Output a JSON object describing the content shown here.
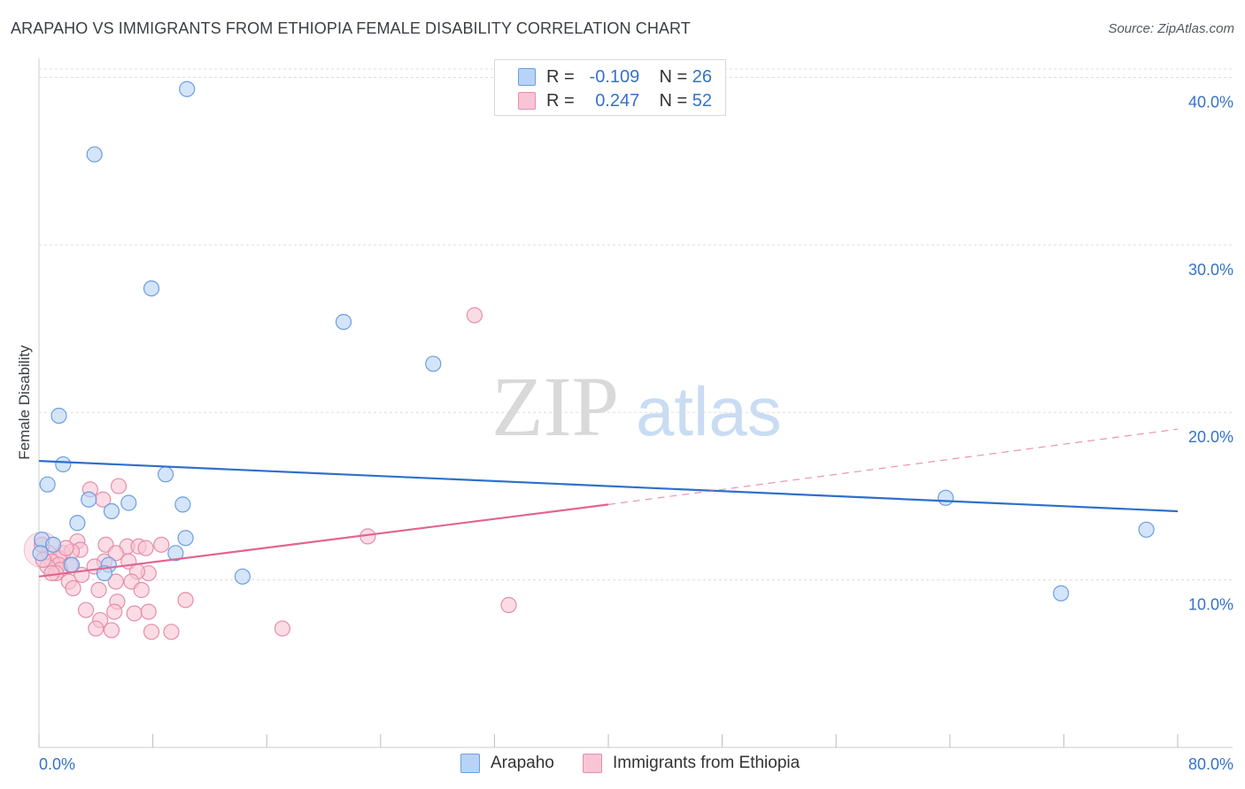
{
  "header": {
    "title": "ARAPAHO VS IMMIGRANTS FROM ETHIOPIA FEMALE DISABILITY CORRELATION CHART",
    "source": "Source: ZipAtlas.com"
  },
  "watermark": {
    "zip": "ZIP",
    "atlas": "atlas"
  },
  "legend": {
    "rows": [
      {
        "r_label": "R =",
        "r_value": "-0.109",
        "n_label": "N =",
        "n_value": "26"
      },
      {
        "r_label": "R =",
        "r_value": "0.247",
        "n_label": "N =",
        "n_value": "52"
      }
    ],
    "bottom": [
      "Arapaho",
      "Immigrants from Ethiopia"
    ]
  },
  "colors": {
    "blue_fill": "#b8d3f5",
    "blue_stroke": "#6c9ee0",
    "blue_line": "#2f6fcc",
    "pink_fill": "#f9c5d4",
    "pink_stroke": "#e58eaa",
    "pink_line": "#e06690",
    "axis_label": "#3572c9",
    "grid": "#dddddd"
  },
  "chart_data": {
    "type": "scatter",
    "title": "ARAPAHO VS IMMIGRANTS FROM ETHIOPIA FEMALE DISABILITY CORRELATION CHART",
    "xlabel": "",
    "ylabel": "Female Disability",
    "xlim": [
      0,
      80
    ],
    "ylim": [
      0,
      40.5
    ],
    "x_tick_labels": [
      "0.0%",
      "80.0%"
    ],
    "y_ticks": [
      10,
      20,
      30,
      40
    ],
    "y_tick_labels": [
      "10.0%",
      "20.0%",
      "30.0%",
      "40.0%"
    ],
    "legend_position": "top-center",
    "series": [
      {
        "name": "Arapaho",
        "r": -0.109,
        "n": 26,
        "points": [
          [
            10.4,
            39.3
          ],
          [
            3.9,
            35.4
          ],
          [
            7.9,
            27.4
          ],
          [
            21.4,
            25.4
          ],
          [
            27.7,
            22.9
          ],
          [
            1.4,
            19.8
          ],
          [
            1.7,
            16.9
          ],
          [
            8.9,
            16.3
          ],
          [
            0.6,
            15.7
          ],
          [
            3.5,
            14.8
          ],
          [
            6.3,
            14.6
          ],
          [
            10.1,
            14.5
          ],
          [
            5.1,
            14.1
          ],
          [
            2.7,
            13.4
          ],
          [
            10.3,
            12.5
          ],
          [
            0.2,
            12.4
          ],
          [
            1.0,
            12.1
          ],
          [
            9.6,
            11.6
          ],
          [
            4.9,
            10.9
          ],
          [
            2.3,
            10.9
          ],
          [
            4.6,
            10.4
          ],
          [
            14.3,
            10.2
          ],
          [
            63.7,
            14.9
          ],
          [
            77.8,
            13.0
          ],
          [
            71.8,
            9.2
          ],
          [
            0.1,
            11.6
          ]
        ],
        "trend": {
          "x0": 0,
          "y0": 17.1,
          "x1": 80,
          "y1": 14.1
        }
      },
      {
        "name": "Immigrants from Ethiopia",
        "r": 0.247,
        "n": 52,
        "points": [
          [
            30.6,
            25.8
          ],
          [
            5.6,
            15.6
          ],
          [
            3.6,
            15.4
          ],
          [
            4.5,
            14.8
          ],
          [
            23.1,
            12.6
          ],
          [
            2.7,
            12.3
          ],
          [
            4.7,
            12.1
          ],
          [
            6.2,
            12.0
          ],
          [
            7.0,
            12.0
          ],
          [
            8.6,
            12.1
          ],
          [
            2.9,
            11.8
          ],
          [
            5.4,
            11.6
          ],
          [
            7.5,
            11.9
          ],
          [
            0.7,
            11.6
          ],
          [
            1.7,
            11.6
          ],
          [
            2.3,
            11.7
          ],
          [
            1.4,
            11.3
          ],
          [
            0.9,
            11.1
          ],
          [
            6.3,
            11.1
          ],
          [
            1.4,
            10.9
          ],
          [
            2.2,
            10.9
          ],
          [
            4.6,
            11.1
          ],
          [
            0.6,
            10.8
          ],
          [
            1.5,
            10.6
          ],
          [
            3.9,
            10.8
          ],
          [
            1.2,
            10.4
          ],
          [
            3.0,
            10.3
          ],
          [
            7.7,
            10.4
          ],
          [
            0.9,
            10.4
          ],
          [
            6.9,
            10.5
          ],
          [
            5.4,
            9.9
          ],
          [
            6.5,
            9.9
          ],
          [
            2.1,
            9.9
          ],
          [
            7.2,
            9.4
          ],
          [
            2.4,
            9.5
          ],
          [
            4.2,
            9.4
          ],
          [
            10.3,
            8.8
          ],
          [
            5.5,
            8.7
          ],
          [
            33.0,
            8.5
          ],
          [
            3.3,
            8.2
          ],
          [
            5.3,
            8.1
          ],
          [
            6.7,
            8.0
          ],
          [
            7.7,
            8.1
          ],
          [
            4.3,
            7.6
          ],
          [
            4.0,
            7.1
          ],
          [
            5.1,
            7.0
          ],
          [
            17.1,
            7.1
          ],
          [
            7.9,
            6.9
          ],
          [
            9.3,
            6.9
          ],
          [
            0.2,
            12.1
          ],
          [
            0.3,
            11.2
          ],
          [
            1.9,
            11.9
          ]
        ],
        "trend": {
          "x0": 0,
          "y0": 10.2,
          "x1": 40,
          "y1": 14.5
        },
        "trend_dashed": {
          "x0": 40,
          "y0": 14.5,
          "x1": 80,
          "y1": 19.0
        }
      }
    ]
  }
}
